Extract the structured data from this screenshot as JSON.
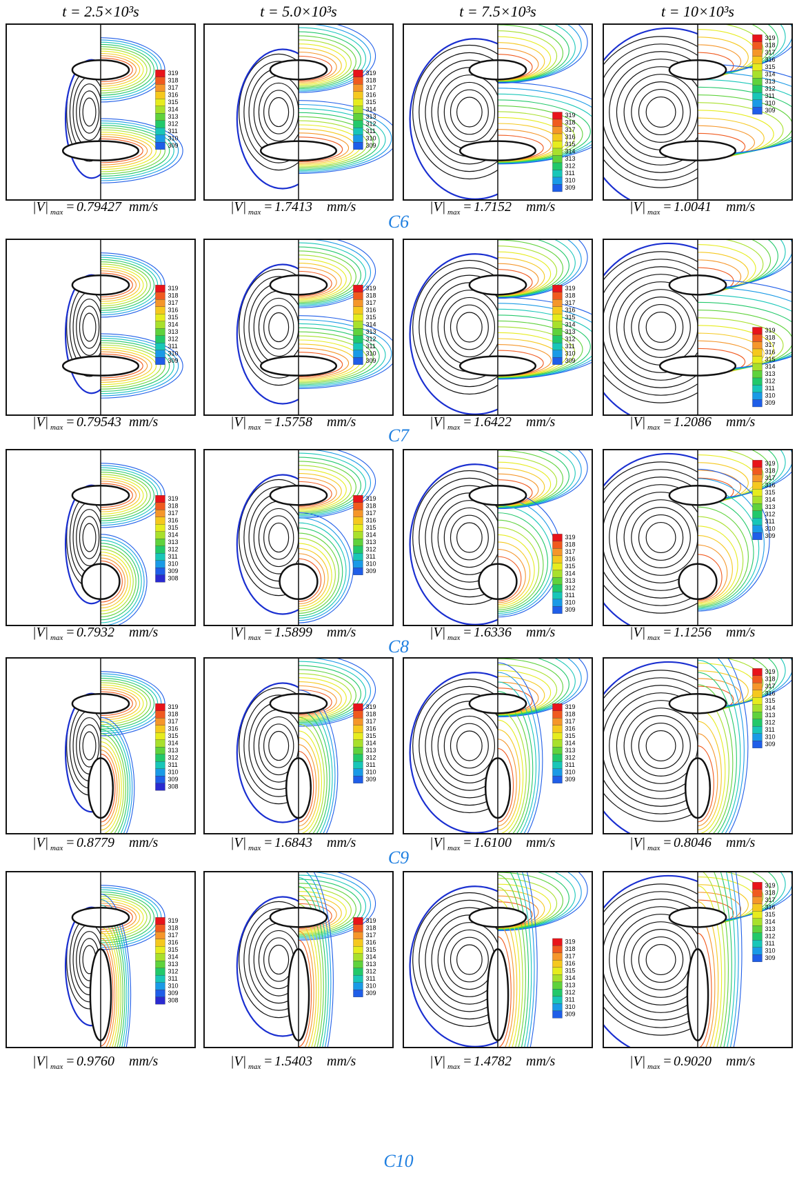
{
  "columns": [
    "t = 2.5×10³s",
    "t = 5.0×10³s",
    "t = 7.5×10³s",
    "t = 10×10³s"
  ],
  "vmax_label": {
    "symbol": "|V|",
    "subscript": "max",
    "equals": "=",
    "unit": "mm/s"
  },
  "rows": [
    {
      "label": "C6",
      "panels": [
        {
          "vmax": "0.79427",
          "colorbar": [
            319,
            318,
            317,
            316,
            315,
            314,
            313,
            312,
            311,
            310,
            309
          ]
        },
        {
          "vmax": "1.7413",
          "colorbar": [
            319,
            318,
            317,
            316,
            315,
            314,
            313,
            312,
            311,
            310,
            309
          ]
        },
        {
          "vmax": "1.7152",
          "colorbar": [
            319,
            318,
            317,
            316,
            315,
            314,
            313,
            312,
            311,
            310,
            309
          ]
        },
        {
          "vmax": "1.0041",
          "colorbar": [
            319,
            318,
            317,
            316,
            315,
            314,
            313,
            312,
            311,
            310,
            309
          ]
        }
      ]
    },
    {
      "label": "C7",
      "panels": [
        {
          "vmax": "0.79543",
          "colorbar": [
            319,
            318,
            317,
            316,
            315,
            314,
            313,
            312,
            311,
            310,
            309
          ]
        },
        {
          "vmax": "1.5758",
          "colorbar": [
            319,
            318,
            317,
            316,
            315,
            314,
            313,
            312,
            311,
            310,
            309
          ]
        },
        {
          "vmax": "1.6422",
          "colorbar": [
            319,
            318,
            317,
            316,
            315,
            314,
            313,
            312,
            311,
            310,
            309
          ]
        },
        {
          "vmax": "1.2086",
          "colorbar": [
            319,
            318,
            317,
            316,
            315,
            314,
            313,
            312,
            311,
            310,
            309
          ]
        }
      ]
    },
    {
      "label": "C8",
      "panels": [
        {
          "vmax": "0.7932",
          "colorbar": [
            319,
            318,
            317,
            316,
            315,
            314,
            313,
            312,
            311,
            310,
            309,
            308
          ]
        },
        {
          "vmax": "1.5899",
          "colorbar": [
            319,
            318,
            317,
            316,
            315,
            314,
            313,
            312,
            311,
            310,
            309
          ]
        },
        {
          "vmax": "1.6336",
          "colorbar": [
            319,
            318,
            317,
            316,
            315,
            314,
            313,
            312,
            311,
            310,
            309
          ]
        },
        {
          "vmax": "1.1256",
          "colorbar": [
            319,
            318,
            317,
            316,
            315,
            314,
            313,
            312,
            311,
            310,
            309
          ]
        }
      ]
    },
    {
      "label": "C9",
      "panels": [
        {
          "vmax": "0.8779",
          "colorbar": [
            319,
            318,
            317,
            316,
            315,
            314,
            313,
            312,
            311,
            310,
            309,
            308
          ]
        },
        {
          "vmax": "1.6843",
          "colorbar": [
            319,
            318,
            317,
            316,
            315,
            314,
            313,
            312,
            311,
            310,
            309
          ]
        },
        {
          "vmax": "1.6100",
          "colorbar": [
            319,
            318,
            317,
            316,
            315,
            314,
            313,
            312,
            311,
            310,
            309
          ]
        },
        {
          "vmax": "0.8046",
          "colorbar": [
            319,
            318,
            317,
            316,
            315,
            314,
            313,
            312,
            311,
            310,
            309
          ]
        }
      ]
    },
    {
      "label": "C10",
      "panels": [
        {
          "vmax": "0.9760",
          "colorbar": [
            319,
            318,
            317,
            316,
            315,
            314,
            313,
            312,
            311,
            310,
            309,
            308
          ]
        },
        {
          "vmax": "1.5403",
          "colorbar": [
            319,
            318,
            317,
            316,
            315,
            314,
            313,
            312,
            311,
            310,
            309
          ]
        },
        {
          "vmax": "1.4782",
          "colorbar": [
            319,
            318,
            317,
            316,
            315,
            314,
            313,
            312,
            311,
            310,
            309
          ]
        },
        {
          "vmax": "0.9020",
          "colorbar": [
            319,
            318,
            317,
            316,
            315,
            314,
            313,
            312,
            311,
            310,
            309
          ]
        }
      ]
    }
  ]
}
